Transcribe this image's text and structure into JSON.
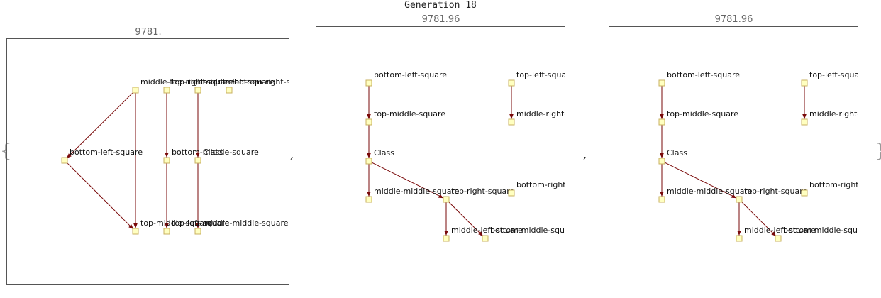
{
  "title": "Generation 18",
  "braces": {
    "open": "{",
    "close": "}"
  },
  "separator": ",",
  "colors": {
    "edge": "#7a0a0a",
    "node_fill": "#ffffc0",
    "node_stroke": "#c8b060",
    "frame": "#555555"
  },
  "panels": [
    {
      "value": "9781.",
      "nodes": [
        {
          "id": "n1",
          "label": "middle-top-right-square"
        },
        {
          "id": "n2",
          "label": "top-right-square"
        },
        {
          "id": "n3",
          "label": "middle-left-square"
        },
        {
          "id": "n4",
          "label": "bottom-right-square"
        },
        {
          "id": "n5",
          "label": "bottom-left-square"
        },
        {
          "id": "n6",
          "label": "bottom-middle-square"
        },
        {
          "id": "n7",
          "label": "Class"
        },
        {
          "id": "n8",
          "label": "top-middle-square"
        },
        {
          "id": "n9",
          "label": "top-left-square"
        },
        {
          "id": "n10",
          "label": "middle-middle-square"
        }
      ],
      "edges": [
        [
          "n1",
          "n5"
        ],
        [
          "n1",
          "n8"
        ],
        [
          "n5",
          "n8"
        ],
        [
          "n2",
          "n6"
        ],
        [
          "n6",
          "n9"
        ],
        [
          "n3",
          "n7"
        ],
        [
          "n7",
          "n10"
        ]
      ]
    },
    {
      "value": "9781.96",
      "nodes": [
        {
          "id": "a",
          "label": "bottom-left-square"
        },
        {
          "id": "b",
          "label": "top-middle-square"
        },
        {
          "id": "c",
          "label": "Class"
        },
        {
          "id": "d",
          "label": "middle-middle-square"
        },
        {
          "id": "e",
          "label": "top-right-square"
        },
        {
          "id": "f",
          "label": "middle-left-square"
        },
        {
          "id": "g",
          "label": "bottom-middle-square"
        },
        {
          "id": "h",
          "label": "top-left-square"
        },
        {
          "id": "i",
          "label": "middle-right-square"
        },
        {
          "id": "j",
          "label": "bottom-right-square"
        }
      ],
      "edges": [
        [
          "a",
          "b"
        ],
        [
          "b",
          "c"
        ],
        [
          "c",
          "d"
        ],
        [
          "c",
          "e"
        ],
        [
          "e",
          "f"
        ],
        [
          "e",
          "g"
        ],
        [
          "h",
          "i"
        ]
      ]
    },
    {
      "value": "9781.96",
      "nodes": [
        {
          "id": "a",
          "label": "bottom-left-square"
        },
        {
          "id": "b",
          "label": "top-middle-square"
        },
        {
          "id": "c",
          "label": "Class"
        },
        {
          "id": "d",
          "label": "middle-middle-square"
        },
        {
          "id": "e",
          "label": "top-right-square"
        },
        {
          "id": "f",
          "label": "middle-left-square"
        },
        {
          "id": "g",
          "label": "bottom-middle-square"
        },
        {
          "id": "h",
          "label": "top-left-square"
        },
        {
          "id": "i",
          "label": "middle-right-square"
        },
        {
          "id": "j",
          "label": "bottom-right-square"
        }
      ],
      "edges": [
        [
          "a",
          "b"
        ],
        [
          "b",
          "c"
        ],
        [
          "c",
          "d"
        ],
        [
          "c",
          "e"
        ],
        [
          "e",
          "f"
        ],
        [
          "e",
          "g"
        ],
        [
          "h",
          "i"
        ]
      ]
    }
  ]
}
